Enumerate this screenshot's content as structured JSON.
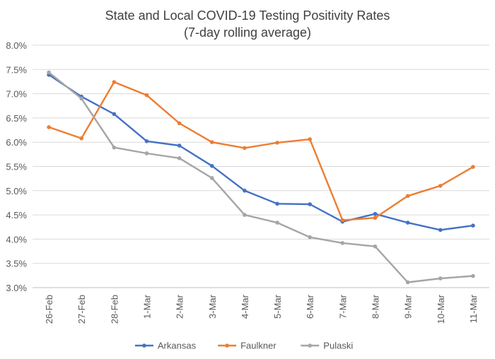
{
  "chart_data": {
    "type": "line",
    "title": "State and Local COVID-19 Testing Positivity Rates",
    "subtitle": "(7-day rolling average)",
    "xlabel": "",
    "ylabel": "",
    "categories": [
      "26-Feb",
      "27-Feb",
      "28-Feb",
      "1-Mar",
      "2-Mar",
      "3-Mar",
      "4-Mar",
      "5-Mar",
      "6-Mar",
      "7-Mar",
      "8-Mar",
      "9-Mar",
      "10-Mar",
      "11-Mar"
    ],
    "ylim": [
      3.0,
      8.0
    ],
    "yticks": [
      "3.0%",
      "3.5%",
      "4.0%",
      "4.5%",
      "5.0%",
      "5.5%",
      "6.0%",
      "6.5%",
      "7.0%",
      "7.5%",
      "8.0%"
    ],
    "grid": true,
    "legend_position": "bottom",
    "series": [
      {
        "name": "Arkansas",
        "color": "#4472C4",
        "values": [
          7.39,
          6.94,
          6.58,
          6.02,
          5.93,
          5.51,
          5.0,
          4.73,
          4.72,
          4.36,
          4.52,
          4.34,
          4.19,
          4.28
        ]
      },
      {
        "name": "Faulkner",
        "color": "#ED7D31",
        "values": [
          6.31,
          6.08,
          7.24,
          6.97,
          6.39,
          6.0,
          5.88,
          5.99,
          6.06,
          4.39,
          4.44,
          4.89,
          5.1,
          5.49
        ]
      },
      {
        "name": "Pulaski",
        "color": "#A5A5A5",
        "values": [
          7.44,
          6.9,
          5.89,
          5.77,
          5.67,
          5.26,
          4.5,
          4.34,
          4.04,
          3.92,
          3.85,
          3.11,
          3.19,
          3.24
        ]
      }
    ]
  }
}
